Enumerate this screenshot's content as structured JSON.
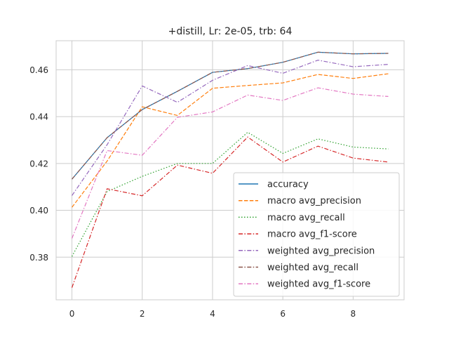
{
  "chart_data": {
    "type": "line",
    "title": "+distill, Lr: 2e-05, trb: 64",
    "xlabel": "",
    "ylabel": "",
    "x": [
      0,
      1,
      2,
      3,
      4,
      5,
      6,
      7,
      8,
      9
    ],
    "xlim": [
      -0.45,
      9.45
    ],
    "ylim": [
      0.3618,
      0.4724
    ],
    "xticks": [
      0,
      2,
      4,
      6,
      8
    ],
    "yticks": [
      0.38,
      0.4,
      0.42,
      0.44,
      0.46
    ],
    "xtick_labels": [
      "0",
      "2",
      "4",
      "6",
      "8"
    ],
    "ytick_labels": [
      "0.38",
      "0.40",
      "0.42",
      "0.44",
      "0.46"
    ],
    "grid": true,
    "legend_position": "lower-right",
    "series": [
      {
        "name": "accuracy",
        "color": "#1f77b4",
        "dash": "solid",
        "values": [
          0.4133,
          0.431,
          0.443,
          0.4508,
          0.4589,
          0.4605,
          0.4632,
          0.4675,
          0.4668,
          0.467
        ]
      },
      {
        "name": "macro avg_precision",
        "color": "#ff7f0e",
        "dash": "dashed",
        "values": [
          0.4013,
          0.421,
          0.4442,
          0.4405,
          0.4521,
          0.4533,
          0.4544,
          0.458,
          0.4563,
          0.4583
        ]
      },
      {
        "name": "macro avg_recall",
        "color": "#2ca02c",
        "dash": "dotted",
        "values": [
          0.3803,
          0.408,
          0.4145,
          0.42,
          0.42,
          0.4333,
          0.4243,
          0.4305,
          0.427,
          0.4262
        ]
      },
      {
        "name": "macro avg_f1-score",
        "color": "#d62728",
        "dash": "dashdot",
        "values": [
          0.367,
          0.4092,
          0.4062,
          0.4193,
          0.4158,
          0.4313,
          0.4206,
          0.4274,
          0.4223,
          0.4206
        ]
      },
      {
        "name": "weighted avg_precision",
        "color": "#9467bd",
        "dash": "dashdot",
        "values": [
          0.4063,
          0.428,
          0.4531,
          0.4461,
          0.4555,
          0.4618,
          0.4585,
          0.4641,
          0.4613,
          0.4623
        ]
      },
      {
        "name": "weighted avg_recall",
        "color": "#8c564b",
        "dash": "dashdot",
        "values": [
          0.4133,
          0.431,
          0.443,
          0.4508,
          0.4589,
          0.4605,
          0.4632,
          0.4675,
          0.4668,
          0.467
        ]
      },
      {
        "name": "weighted avg_f1-score",
        "color": "#e377c2",
        "dash": "dashdot",
        "values": [
          0.388,
          0.4255,
          0.4235,
          0.4397,
          0.442,
          0.4492,
          0.4469,
          0.4523,
          0.4496,
          0.4486
        ]
      }
    ]
  }
}
